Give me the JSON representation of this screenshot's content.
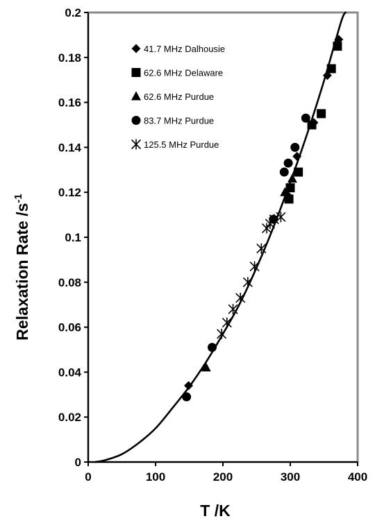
{
  "chart_data": {
    "type": "scatter",
    "xlabel": "T /K",
    "ylabel": "Relaxation Rate /s",
    "ylabel_superscript": "-1",
    "xlim": [
      0,
      400
    ],
    "ylim": [
      0,
      0.2
    ],
    "xticks": [
      "0",
      "100",
      "200",
      "300",
      "400"
    ],
    "yticks": [
      "0",
      "0.02",
      "0.04",
      "0.06",
      "0.08",
      "0.1",
      "0.12",
      "0.14",
      "0.16",
      "0.18",
      "0.2"
    ],
    "grid": false,
    "legend_position": "top-left",
    "series": [
      {
        "name": "41.7 MHz Dalhousie",
        "marker": "diamond",
        "points": [
          [
            149,
            0.034
          ],
          [
            295,
            0.119
          ],
          [
            310,
            0.136
          ],
          [
            335,
            0.151
          ],
          [
            355,
            0.172
          ],
          [
            372,
            0.188
          ]
        ]
      },
      {
        "name": "62.6 MHz Delaware",
        "marker": "square",
        "points": [
          [
            298,
            0.117
          ],
          [
            300,
            0.122
          ],
          [
            312,
            0.129
          ],
          [
            332,
            0.15
          ],
          [
            346,
            0.155
          ],
          [
            361,
            0.175
          ],
          [
            370,
            0.185
          ]
        ]
      },
      {
        "name": "62.6 MHz Purdue",
        "marker": "triangle",
        "points": [
          [
            175,
            0.042
          ],
          [
            292,
            0.12
          ],
          [
            303,
            0.126
          ]
        ]
      },
      {
        "name": "83.7 MHz Purdue",
        "marker": "circle",
        "points": [
          [
            146,
            0.029
          ],
          [
            184,
            0.051
          ],
          [
            291,
            0.129
          ],
          [
            297,
            0.133
          ],
          [
            307,
            0.14
          ],
          [
            323,
            0.153
          ],
          [
            275,
            0.108
          ]
        ]
      },
      {
        "name": "125.5 MHz Purdue",
        "marker": "asterisk",
        "points": [
          [
            198,
            0.057
          ],
          [
            206,
            0.062
          ],
          [
            215,
            0.068
          ],
          [
            226,
            0.073
          ],
          [
            237,
            0.08
          ],
          [
            247,
            0.087
          ],
          [
            257,
            0.095
          ],
          [
            265,
            0.104
          ],
          [
            270,
            0.106
          ],
          [
            276,
            0.108
          ],
          [
            286,
            0.109
          ]
        ]
      }
    ],
    "curve": {
      "x": [
        10,
        25,
        50,
        75,
        100,
        125,
        150,
        175,
        200,
        225,
        250,
        275,
        300,
        325,
        350,
        375,
        382
      ],
      "y": [
        0,
        0.0008,
        0.0035,
        0.0085,
        0.015,
        0.024,
        0.0335,
        0.0445,
        0.057,
        0.0705,
        0.0865,
        0.1045,
        0.1245,
        0.146,
        0.1695,
        0.1955,
        0.2
      ]
    }
  },
  "colors": {
    "ink": "#000000",
    "frame": "#8a8a8a",
    "background": "#ffffff"
  }
}
